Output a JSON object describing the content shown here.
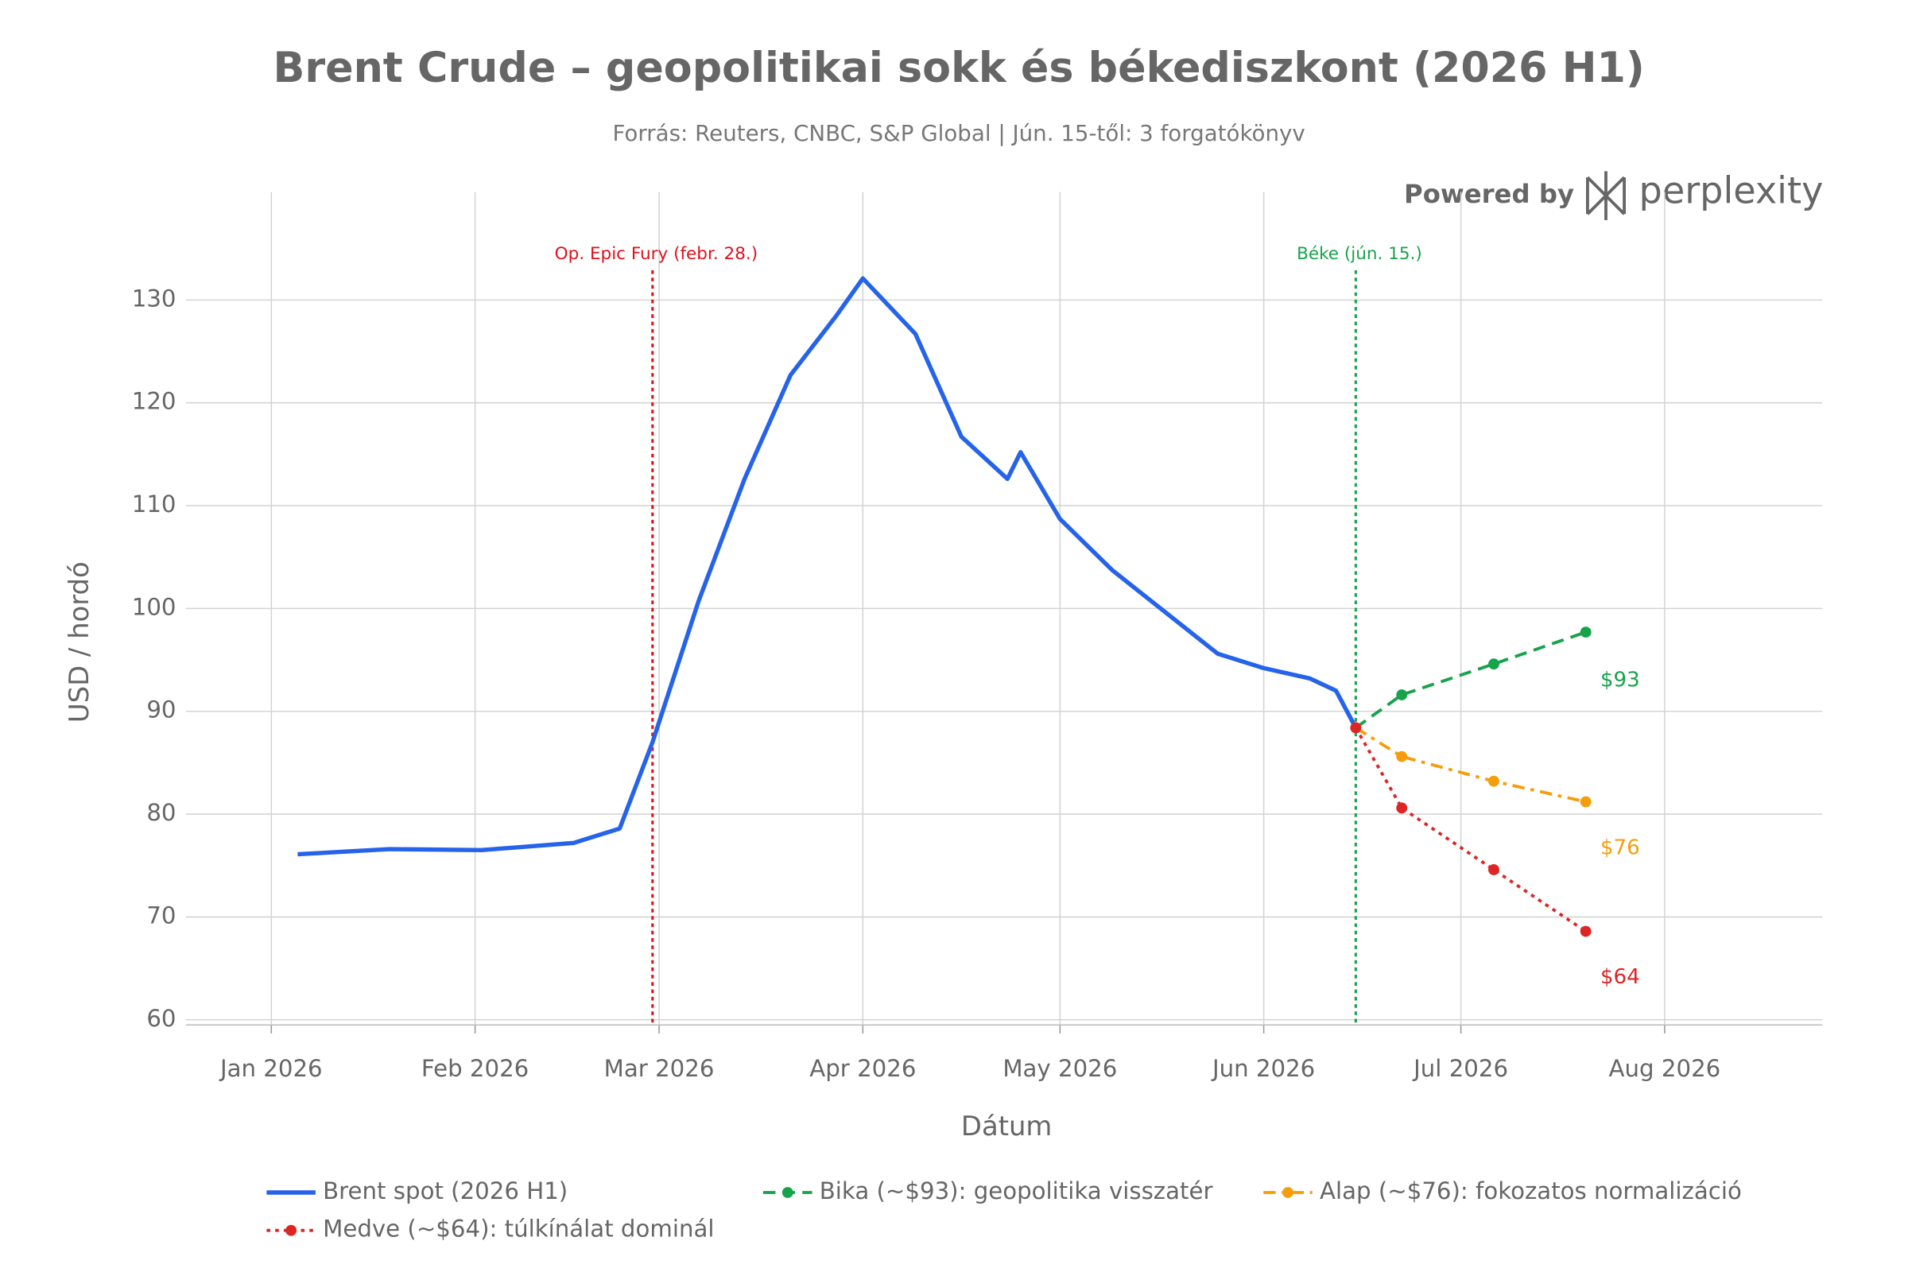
{
  "chart_data": {
    "type": "line",
    "title": "Brent Crude – geopolitikai sokk és békediszkont (2026 H1)",
    "subtitle": "Forrás: Reuters, CNBC, S&P Global | Jún. 15-től: 3 forgatókönyv",
    "x_label": "Dátum",
    "y_label": "USD / hordó",
    "xlim": [
      "2025-12-19",
      "2026-08-25"
    ],
    "xticks": [
      {
        "value": "2026-01-01",
        "label": "Jan 2026"
      },
      {
        "value": "2026-02-01",
        "label": "Feb 2026"
      },
      {
        "value": "2026-03-01",
        "label": "Mar 2026"
      },
      {
        "value": "2026-04-01",
        "label": "Apr 2026"
      },
      {
        "value": "2026-05-01",
        "label": "May 2026"
      },
      {
        "value": "2026-06-01",
        "label": "Jun 2026"
      },
      {
        "value": "2026-07-01",
        "label": "Jul 2026"
      },
      {
        "value": "2026-08-01",
        "label": "Aug 2026"
      }
    ],
    "ylim": [
      59.5,
      140.5
    ],
    "yticks": [
      60,
      70,
      80,
      90,
      100,
      110,
      120,
      130
    ],
    "grid": true,
    "series": [
      {
        "name": "Brent spot (2026 H1)",
        "color": "#2563eb",
        "dash": "solid",
        "markers": false,
        "x": [
          "2026-01-05",
          "2026-01-19",
          "2026-02-02",
          "2026-02-16",
          "2026-02-23",
          "2026-02-28",
          "2026-03-07",
          "2026-03-14",
          "2026-03-21",
          "2026-03-28",
          "2026-04-01",
          "2026-04-09",
          "2026-04-16",
          "2026-04-23",
          "2026-04-25",
          "2026-05-01",
          "2026-05-09",
          "2026-05-25",
          "2026-06-01",
          "2026-06-08",
          "2026-06-12",
          "2026-06-15"
        ],
        "values": [
          76.1,
          76.6,
          76.5,
          77.2,
          78.6,
          87.0,
          100.7,
          112.6,
          122.7,
          128.5,
          132.1,
          126.7,
          116.7,
          112.6,
          115.2,
          108.7,
          103.7,
          95.6,
          94.2,
          93.2,
          92.0,
          88.4
        ]
      },
      {
        "name": "Bika (~$93): geopolitika visszatér",
        "color": "#16a34a",
        "dash": "dash",
        "markers": true,
        "x": [
          "2026-06-15",
          "2026-06-22",
          "2026-07-06",
          "2026-07-20"
        ],
        "values": [
          88.4,
          91.6,
          94.6,
          97.7
        ]
      },
      {
        "name": "Alap (~$76): fokozatos normalizáció",
        "color": "#f59e0b",
        "dash": "dashdot",
        "markers": true,
        "x": [
          "2026-06-15",
          "2026-06-22",
          "2026-07-06",
          "2026-07-20"
        ],
        "values": [
          88.4,
          85.6,
          83.2,
          81.2
        ]
      },
      {
        "name": "Medve (~$64): túlkínálat dominál",
        "color": "#dc2626",
        "dash": "dot",
        "markers": true,
        "x": [
          "2026-06-15",
          "2026-06-22",
          "2026-07-06",
          "2026-07-20"
        ],
        "values": [
          88.4,
          80.6,
          74.6,
          68.6
        ]
      }
    ],
    "vlines": [
      {
        "x": "2026-02-28",
        "label": "Op. Epic Fury (febr. 28.)",
        "color": "#e0101a"
      },
      {
        "x": "2026-06-15",
        "label": "Béke (jún. 15.)",
        "color": "#16a34a"
      }
    ],
    "annotations": [
      {
        "text": "$93",
        "x": "2026-07-20",
        "y": 93,
        "color": "#16a34a"
      },
      {
        "text": "$76",
        "x": "2026-07-20",
        "y": 76.7,
        "color": "#f59e0b"
      },
      {
        "text": "$64",
        "x": "2026-07-20",
        "y": 64.1,
        "color": "#dc2626"
      }
    ],
    "legend": "bottom"
  },
  "branding": {
    "prefix": "Powered by",
    "name": "perplexity"
  }
}
